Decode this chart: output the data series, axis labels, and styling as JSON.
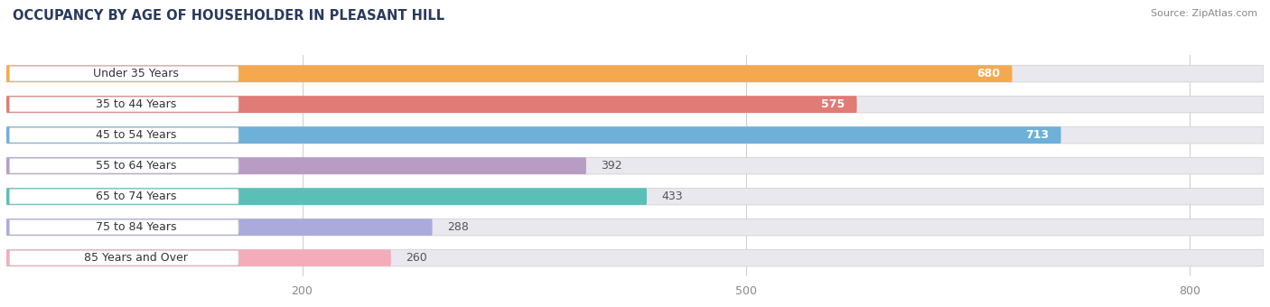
{
  "title": "OCCUPANCY BY AGE OF HOUSEHOLDER IN PLEASANT HILL",
  "source": "Source: ZipAtlas.com",
  "categories": [
    "Under 35 Years",
    "35 to 44 Years",
    "45 to 54 Years",
    "55 to 64 Years",
    "65 to 74 Years",
    "75 to 84 Years",
    "85 Years and Over"
  ],
  "values": [
    680,
    575,
    713,
    392,
    433,
    288,
    260
  ],
  "bar_colors": [
    "#F5A94E",
    "#E07B75",
    "#6EB0D8",
    "#B89CC4",
    "#5BBFB8",
    "#AAAADD",
    "#F4ACBA"
  ],
  "bar_bg_colors": [
    "#E8E8EE",
    "#E8E8EE",
    "#E8E8EE",
    "#E8E8EE",
    "#E8E8EE",
    "#E8E8EE",
    "#E8E8EE"
  ],
  "xlim_max": 850,
  "xticks": [
    200,
    500,
    800
  ],
  "bg_color": "#ffffff",
  "title_color": "#2a3a5e",
  "title_fontsize": 10.5,
  "source_fontsize": 8,
  "label_fontsize": 9,
  "value_fontsize": 9
}
